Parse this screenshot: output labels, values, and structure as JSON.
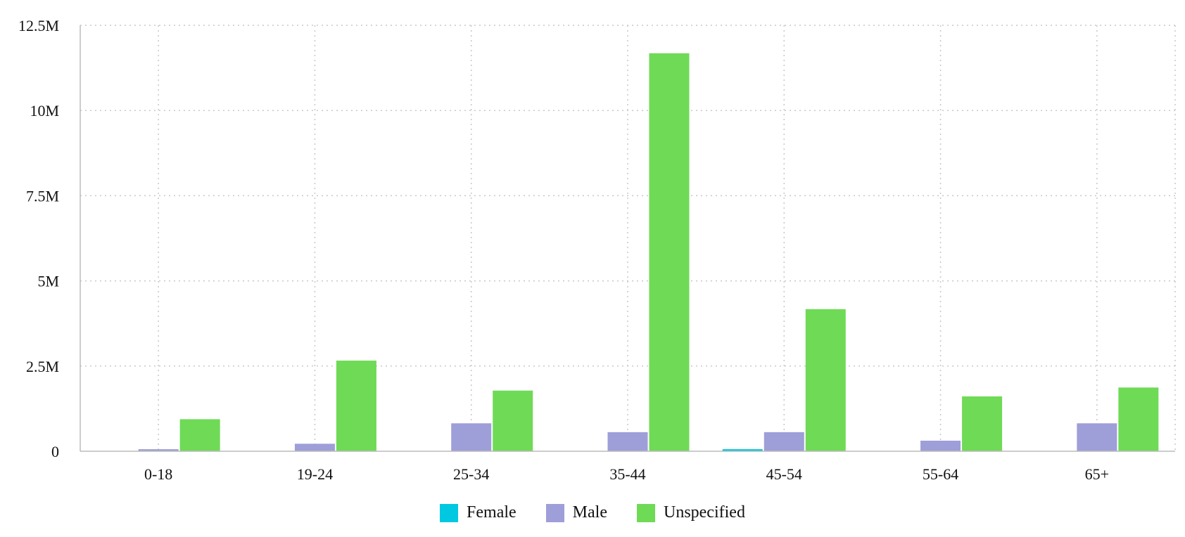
{
  "chart_data": {
    "type": "bar",
    "title": "",
    "xlabel": "",
    "ylabel": "",
    "categories": [
      "0-18",
      "19-24",
      "25-34",
      "35-44",
      "45-54",
      "55-64",
      "65+"
    ],
    "series": [
      {
        "name": "Female",
        "color": "#00c8e0",
        "values": [
          0,
          0,
          0,
          0,
          60000,
          0,
          0
        ]
      },
      {
        "name": "Male",
        "color": "#9e9ed9",
        "values": [
          60000,
          220000,
          820000,
          560000,
          560000,
          310000,
          820000
        ]
      },
      {
        "name": "Unspecified",
        "color": "#6fda56",
        "values": [
          940000,
          2660000,
          1780000,
          11680000,
          4170000,
          1610000,
          1870000
        ]
      }
    ],
    "ylim": [
      0,
      12500000
    ],
    "yticks": [
      0,
      2500000,
      5000000,
      7500000,
      10000000,
      12500000
    ],
    "ytick_labels": [
      "0",
      "2.5M",
      "5M",
      "7.5M",
      "10M",
      "12.5M"
    ],
    "grid": true,
    "legend_position": "bottom-center"
  }
}
